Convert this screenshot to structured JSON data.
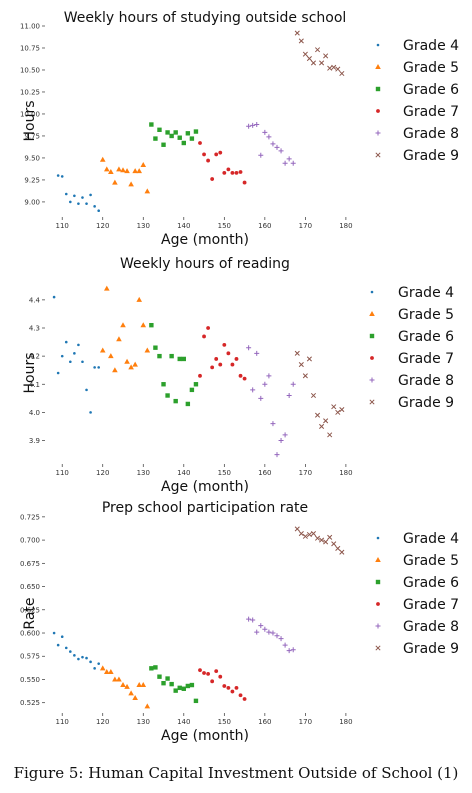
{
  "figure": {
    "caption": "Figure 5: Human Capital Investment Outside of School (1)"
  },
  "series_styles": [
    {
      "name": "Grade 4",
      "color": "#1f77b4",
      "marker": "point"
    },
    {
      "name": "Grade 5",
      "color": "#ff7f0e",
      "marker": "triangle"
    },
    {
      "name": "Grade 6",
      "color": "#2ca02c",
      "marker": "square"
    },
    {
      "name": "Grade 7",
      "color": "#d62728",
      "marker": "dot"
    },
    {
      "name": "Grade 8",
      "color": "#9467bd",
      "marker": "plus"
    },
    {
      "name": "Grade 9",
      "color": "#8c564b",
      "marker": "x"
    }
  ],
  "chart_data": [
    {
      "type": "scatter",
      "title": "Weekly hours of studying outside school",
      "xlabel": "Age (month)",
      "ylabel": "Hours",
      "xlim": [
        106,
        182
      ],
      "ylim": [
        8.84,
        11.0
      ],
      "xticks": [
        110,
        120,
        130,
        140,
        150,
        160,
        170,
        180
      ],
      "yticks": [
        "9.00",
        "9.25",
        "9.50",
        "9.75",
        "10.00",
        "10.25",
        "10.50",
        "10.75",
        "11.00"
      ],
      "grid": false,
      "legend": "right",
      "series": [
        {
          "name": "Grade 4",
          "x": [
            109,
            110,
            111,
            112,
            113,
            114,
            115,
            116,
            117,
            118,
            119
          ],
          "y": [
            9.3,
            9.29,
            9.09,
            9.0,
            9.07,
            8.98,
            9.05,
            8.98,
            9.08,
            8.95,
            8.9
          ]
        },
        {
          "name": "Grade 5",
          "x": [
            120,
            121,
            122,
            123,
            124,
            125,
            126,
            127,
            128,
            129,
            130,
            131
          ],
          "y": [
            9.48,
            9.37,
            9.34,
            9.22,
            9.37,
            9.36,
            9.35,
            9.2,
            9.35,
            9.35,
            9.42,
            9.12
          ]
        },
        {
          "name": "Grade 6",
          "x": [
            132,
            133,
            134,
            135,
            136,
            137,
            138,
            139,
            140,
            141,
            142,
            143
          ],
          "y": [
            9.88,
            9.72,
            9.82,
            9.65,
            9.79,
            9.75,
            9.79,
            9.73,
            9.67,
            9.78,
            9.72,
            9.8
          ]
        },
        {
          "name": "Grade 7",
          "x": [
            144,
            145,
            146,
            147,
            148,
            149,
            150,
            151,
            152,
            153,
            154,
            155
          ],
          "y": [
            9.67,
            9.54,
            9.47,
            9.26,
            9.54,
            9.56,
            9.33,
            9.37,
            9.33,
            9.33,
            9.34,
            9.22
          ]
        },
        {
          "name": "Grade 8",
          "x": [
            156,
            157,
            158,
            159,
            160,
            161,
            162,
            163,
            164,
            165,
            166,
            167
          ],
          "y": [
            9.86,
            9.87,
            9.88,
            9.53,
            9.79,
            9.74,
            9.66,
            9.62,
            9.58,
            9.44,
            9.49,
            9.44
          ]
        },
        {
          "name": "Grade 9",
          "x": [
            168,
            169,
            170,
            171,
            172,
            173,
            174,
            175,
            176,
            177,
            178,
            179
          ],
          "y": [
            10.92,
            10.83,
            10.68,
            10.63,
            10.58,
            10.73,
            10.58,
            10.66,
            10.52,
            10.53,
            10.51,
            10.46
          ]
        }
      ]
    },
    {
      "type": "scatter",
      "title": "Weekly hours of reading",
      "xlabel": "Age (month)",
      "ylabel": "Hours",
      "xlim": [
        106,
        182
      ],
      "ylim": [
        3.82,
        4.46
      ],
      "xticks": [
        110,
        120,
        130,
        140,
        150,
        160,
        170,
        180
      ],
      "yticks": [
        "3.9",
        "4.0",
        "4.1",
        "4.2",
        "4.3",
        "4.4"
      ],
      "grid": false,
      "legend": "right",
      "series": [
        {
          "name": "Grade 4",
          "x": [
            108,
            109,
            110,
            111,
            112,
            113,
            114,
            115,
            116,
            117,
            118,
            119
          ],
          "y": [
            4.41,
            4.14,
            4.2,
            4.25,
            4.18,
            4.21,
            4.24,
            4.18,
            4.08,
            4.0,
            4.16,
            4.16
          ]
        },
        {
          "name": "Grade 5",
          "x": [
            120,
            121,
            122,
            123,
            124,
            125,
            126,
            127,
            128,
            129,
            130,
            131
          ],
          "y": [
            4.22,
            4.44,
            4.2,
            4.15,
            4.26,
            4.31,
            4.18,
            4.16,
            4.17,
            4.4,
            4.31,
            4.22
          ]
        },
        {
          "name": "Grade 6",
          "x": [
            132,
            133,
            134,
            135,
            136,
            137,
            138,
            139,
            140,
            141,
            142,
            143
          ],
          "y": [
            4.31,
            4.23,
            4.2,
            4.1,
            4.06,
            4.2,
            4.04,
            4.19,
            4.19,
            4.03,
            4.08,
            4.1
          ]
        },
        {
          "name": "Grade 7",
          "x": [
            144,
            145,
            146,
            147,
            148,
            149,
            150,
            151,
            152,
            153,
            154,
            155
          ],
          "y": [
            4.13,
            4.27,
            4.3,
            4.16,
            4.19,
            4.17,
            4.24,
            4.21,
            4.17,
            4.19,
            4.13,
            4.12
          ]
        },
        {
          "name": "Grade 8",
          "x": [
            156,
            157,
            158,
            159,
            160,
            161,
            162,
            163,
            164,
            165,
            166,
            167
          ],
          "y": [
            4.23,
            4.08,
            4.21,
            4.05,
            4.1,
            4.13,
            3.96,
            3.85,
            3.9,
            3.92,
            4.06,
            4.1
          ]
        },
        {
          "name": "Grade 9",
          "x": [
            168,
            169,
            170,
            171,
            172,
            173,
            174,
            175,
            176,
            177,
            178,
            179
          ],
          "y": [
            4.21,
            4.17,
            4.13,
            4.19,
            4.06,
            3.99,
            3.95,
            3.97,
            3.92,
            4.02,
            4.0,
            4.01
          ]
        }
      ]
    },
    {
      "type": "scatter",
      "title": "Prep school participation rate",
      "xlabel": "Age (month)",
      "ylabel": "Rate",
      "xlim": [
        106,
        182
      ],
      "ylim": [
        0.515,
        0.727
      ],
      "xticks": [
        110,
        120,
        130,
        140,
        150,
        160,
        170,
        180
      ],
      "yticks": [
        "0.525",
        "0.550",
        "0.575",
        "0.600",
        "0.625",
        "0.650",
        "0.675",
        "0.700",
        "0.725"
      ],
      "grid": false,
      "legend": "right",
      "series": [
        {
          "name": "Grade 4",
          "x": [
            108,
            109,
            110,
            111,
            112,
            113,
            114,
            115,
            116,
            117,
            118,
            119
          ],
          "y": [
            0.6,
            0.587,
            0.596,
            0.584,
            0.58,
            0.576,
            0.572,
            0.574,
            0.573,
            0.569,
            0.562,
            0.567
          ]
        },
        {
          "name": "Grade 5",
          "x": [
            120,
            121,
            122,
            123,
            124,
            125,
            126,
            127,
            128,
            129,
            130,
            131
          ],
          "y": [
            0.562,
            0.558,
            0.558,
            0.55,
            0.55,
            0.544,
            0.542,
            0.535,
            0.53,
            0.544,
            0.544,
            0.521
          ]
        },
        {
          "name": "Grade 6",
          "x": [
            132,
            133,
            134,
            135,
            136,
            137,
            138,
            139,
            140,
            141,
            142,
            143
          ],
          "y": [
            0.562,
            0.563,
            0.553,
            0.546,
            0.551,
            0.545,
            0.538,
            0.541,
            0.54,
            0.543,
            0.544,
            0.527
          ]
        },
        {
          "name": "Grade 7",
          "x": [
            144,
            145,
            146,
            147,
            148,
            149,
            150,
            151,
            152,
            153,
            154,
            155
          ],
          "y": [
            0.56,
            0.557,
            0.556,
            0.548,
            0.559,
            0.553,
            0.543,
            0.541,
            0.537,
            0.541,
            0.533,
            0.529
          ]
        },
        {
          "name": "Grade 8",
          "x": [
            156,
            157,
            158,
            159,
            160,
            161,
            162,
            163,
            164,
            165,
            166,
            167
          ],
          "y": [
            0.615,
            0.614,
            0.601,
            0.608,
            0.604,
            0.601,
            0.6,
            0.597,
            0.594,
            0.587,
            0.581,
            0.582
          ]
        },
        {
          "name": "Grade 9",
          "x": [
            168,
            169,
            170,
            171,
            172,
            173,
            174,
            175,
            176,
            177,
            178,
            179
          ],
          "y": [
            0.712,
            0.707,
            0.704,
            0.706,
            0.707,
            0.702,
            0.7,
            0.698,
            0.703,
            0.696,
            0.691,
            0.687
          ]
        }
      ]
    }
  ]
}
